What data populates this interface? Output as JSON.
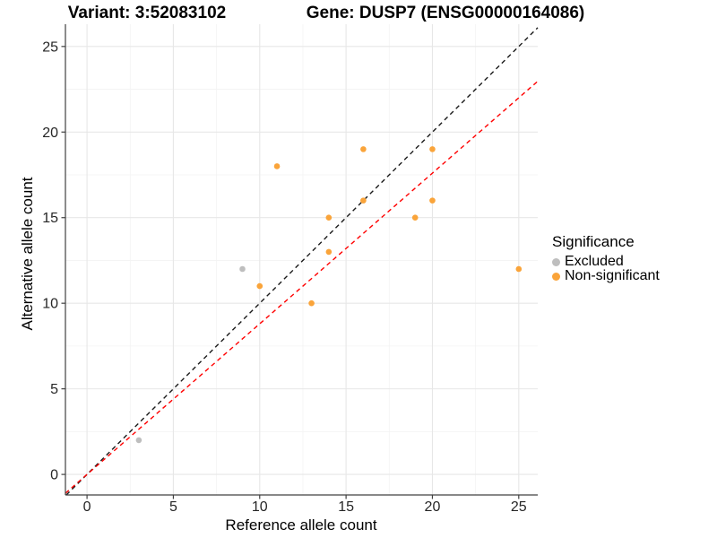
{
  "titles": {
    "variant": "Variant: 3:52083102",
    "gene": "Gene: DUSP7 (ENSG00000164086)"
  },
  "chart_data": {
    "type": "scatter",
    "xlabel": "Reference allele count",
    "ylabel": "Alternative allele count",
    "x_ticks": [
      0,
      5,
      10,
      15,
      20,
      25
    ],
    "y_ticks": [
      0,
      5,
      10,
      15,
      20,
      25
    ],
    "minor_ticks": [
      2.5,
      7.5,
      12.5,
      17.5,
      22.5
    ],
    "x_domain": [
      -1.25,
      26.1
    ],
    "y_domain": [
      -1.2,
      26.3
    ],
    "grid": "on",
    "series": [
      {
        "name": "Excluded",
        "color": "#BEBEBE",
        "points": [
          [
            3,
            2
          ],
          [
            9,
            12
          ]
        ]
      },
      {
        "name": "Non-significant",
        "color": "#FAA43A",
        "points": [
          [
            10,
            11
          ],
          [
            11,
            18
          ],
          [
            13,
            10
          ],
          [
            14,
            13
          ],
          [
            14,
            15
          ],
          [
            16,
            16
          ],
          [
            16,
            19
          ],
          [
            19,
            15
          ],
          [
            20,
            16
          ],
          [
            20,
            19
          ],
          [
            25,
            12
          ]
        ]
      }
    ],
    "lines": [
      {
        "name": "identity-line",
        "slope": 1,
        "intercept": 0,
        "color": "#1A1A1A",
        "dash": "5 4"
      },
      {
        "name": "fit-line",
        "slope": 0.88,
        "intercept": 0,
        "color": "#FF0000",
        "dash": "5 4"
      }
    ],
    "legend": {
      "title": "Significance",
      "position": "right"
    },
    "colors": {
      "major_grid": "#E7E7E7",
      "minor_grid": "#F3F3F3",
      "axis_line": "#404040",
      "tick_text": "#262626"
    }
  }
}
